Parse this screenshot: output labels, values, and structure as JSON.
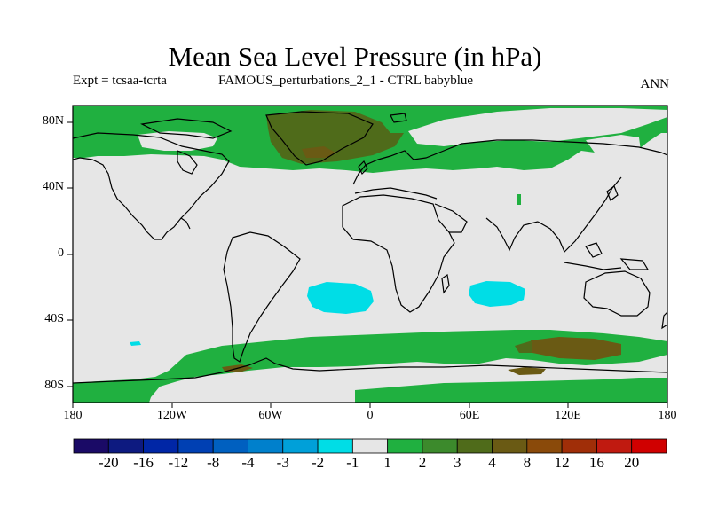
{
  "title": "Mean Sea Level Pressure (in hPa)",
  "subtitle_left": "Expt = tcsaa-tcrta",
  "subtitle_center": "FAMOUS_perturbations_2_1 - CTRL babyblue",
  "subtitle_right": "ANN",
  "map": {
    "projection": "cylindrical-equidistant",
    "lon_range": [
      -180,
      180
    ],
    "lat_range": [
      -90,
      90
    ],
    "background_color": "#e6e6e6",
    "x_tick_labels": [
      "180",
      "120W",
      "60W",
      "0",
      "60E",
      "120E",
      "180"
    ],
    "y_tick_labels": [
      "80N",
      "40N",
      "0",
      "40S",
      "80S"
    ]
  },
  "colorbar": {
    "colors": [
      "#1a0a66",
      "#0d1a80",
      "#0026a6",
      "#0040b3",
      "#0060c0",
      "#0080cc",
      "#00a0d9",
      "#00dde6",
      "#e6e6e6",
      "#20b040",
      "#3c8a2c",
      "#4f6b1a",
      "#6a5a14",
      "#8a4a0a",
      "#a02e08",
      "#c01a10",
      "#d00000"
    ],
    "labels": [
      "-20",
      "-16",
      "-12",
      "-8",
      "-4",
      "-3",
      "-2",
      "-1",
      "1",
      "2",
      "3",
      "4",
      "8",
      "12",
      "16",
      "20"
    ]
  },
  "legend_colors": {
    "neutral": "#e6e6e6",
    "pos_2": "#20b040",
    "pos_3": "#3c8a2c",
    "pos_4": "#6a5a14",
    "neg_1": "#00dde6"
  }
}
